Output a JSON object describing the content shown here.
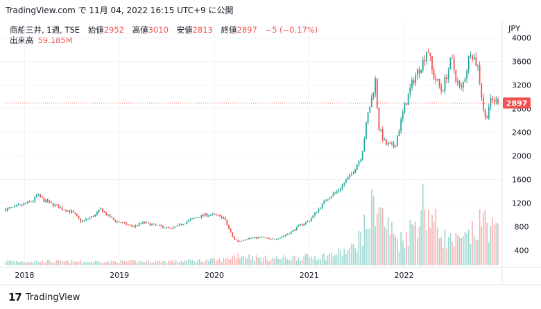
{
  "header": {
    "source": "TradingView.com で 11月 04, 2022 16:15 UTC+9 に公開"
  },
  "legend": {
    "symbol": "商船三井, 1週, TSE",
    "open_label": "始値",
    "open": "2952",
    "high_label": "高値",
    "high": "3010",
    "low_label": "安値",
    "low": "2813",
    "close_label": "終値",
    "close": "2897",
    "change": "−5 (−0.17%)",
    "volume_label": "出来高",
    "volume": "59.185M"
  },
  "currency": "JPY",
  "last_price_label": "2897",
  "brand": {
    "logo": "17",
    "name": "TradingView"
  },
  "colors": {
    "up": "#26a69a",
    "down": "#ef5350",
    "grid": "#f0f3fa",
    "axis_text": "#131722"
  },
  "chart_data": {
    "type": "candlestick",
    "interval": "1週",
    "y_ticks": [
      "400",
      "800",
      "1200",
      "1600",
      "2000",
      "2400",
      "2800",
      "3200",
      "3600",
      "4000"
    ],
    "ylim": [
      0,
      4000
    ],
    "x_ticks": [
      "2018",
      "2019",
      "2020",
      "2021",
      "2022"
    ],
    "last_price": 2897,
    "price_path": [
      [
        2017.8,
        1090
      ],
      [
        2017.95,
        1150
      ],
      [
        2018.1,
        1250
      ],
      [
        2018.13,
        1340
      ],
      [
        2018.2,
        1250
      ],
      [
        2018.4,
        1100
      ],
      [
        2018.5,
        1050
      ],
      [
        2018.6,
        880
      ],
      [
        2018.75,
        1000
      ],
      [
        2018.8,
        1100
      ],
      [
        2018.85,
        1020
      ],
      [
        2018.95,
        900
      ],
      [
        2019.05,
        850
      ],
      [
        2019.15,
        800
      ],
      [
        2019.25,
        870
      ],
      [
        2019.35,
        830
      ],
      [
        2019.45,
        800
      ],
      [
        2019.55,
        760
      ],
      [
        2019.7,
        880
      ],
      [
        2019.8,
        950
      ],
      [
        2019.9,
        1000
      ],
      [
        2020.0,
        1000
      ],
      [
        2020.1,
        950
      ],
      [
        2020.2,
        600
      ],
      [
        2020.25,
        550
      ],
      [
        2020.35,
        600
      ],
      [
        2020.5,
        620
      ],
      [
        2020.6,
        580
      ],
      [
        2020.7,
        620
      ],
      [
        2020.8,
        700
      ],
      [
        2020.9,
        820
      ],
      [
        2021.0,
        900
      ],
      [
        2021.1,
        1100
      ],
      [
        2021.2,
        1300
      ],
      [
        2021.3,
        1400
      ],
      [
        2021.45,
        1700
      ],
      [
        2021.55,
        2000
      ],
      [
        2021.62,
        2700
      ],
      [
        2021.7,
        3300
      ],
      [
        2021.73,
        2500
      ],
      [
        2021.8,
        2200
      ],
      [
        2021.9,
        2150
      ],
      [
        2022.0,
        2800
      ],
      [
        2022.1,
        3300
      ],
      [
        2022.2,
        3600
      ],
      [
        2022.25,
        3850
      ],
      [
        2022.3,
        3400
      ],
      [
        2022.4,
        3100
      ],
      [
        2022.5,
        3650
      ],
      [
        2022.55,
        3300
      ],
      [
        2022.6,
        3100
      ],
      [
        2022.65,
        3400
      ],
      [
        2022.7,
        3800
      ],
      [
        2022.78,
        3500
      ],
      [
        2022.83,
        2850
      ],
      [
        2022.86,
        2600
      ],
      [
        2022.9,
        2900
      ],
      [
        2022.95,
        2950
      ],
      [
        2022.99,
        2897
      ]
    ],
    "volume_ticks": [
      "400",
      "800",
      "1200"
    ],
    "volume_path": [
      [
        2017.8,
        70
      ],
      [
        2018.5,
        60
      ],
      [
        2019.5,
        65
      ],
      [
        2020.1,
        90
      ],
      [
        2020.25,
        180
      ],
      [
        2020.5,
        110
      ],
      [
        2020.9,
        130
      ],
      [
        2021.2,
        160
      ],
      [
        2021.45,
        260
      ],
      [
        2021.6,
        650
      ],
      [
        2021.7,
        1100
      ],
      [
        2021.8,
        700
      ],
      [
        2021.95,
        400
      ],
      [
        2022.1,
        650
      ],
      [
        2022.2,
        1050
      ],
      [
        2022.3,
        750
      ],
      [
        2022.45,
        420
      ],
      [
        2022.6,
        380
      ],
      [
        2022.75,
        550
      ],
      [
        2022.85,
        780
      ],
      [
        2022.99,
        500
      ]
    ]
  }
}
